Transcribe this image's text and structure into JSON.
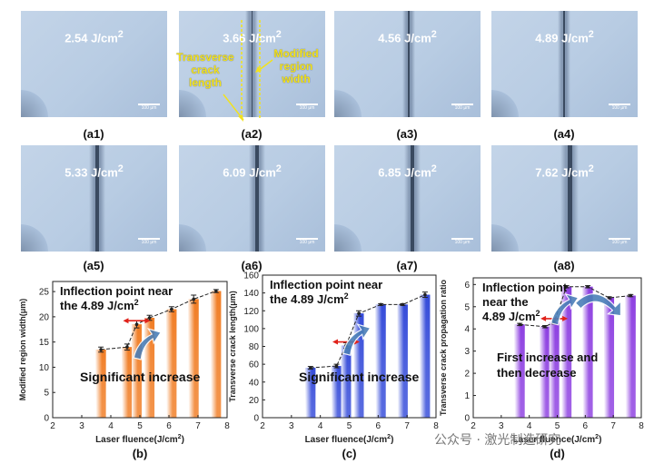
{
  "micrographs": [
    {
      "fluence": "2.54 J/cm",
      "exp": "2",
      "label": "(a1)",
      "scale": "100 μm"
    },
    {
      "fluence": "3.66 J/cm",
      "exp": "2",
      "label": "(a2)",
      "scale": "100 μm"
    },
    {
      "fluence": "4.56 J/cm",
      "exp": "2",
      "label": "(a3)",
      "scale": "100 μm"
    },
    {
      "fluence": "4.89 J/cm",
      "exp": "2",
      "label": "(a4)",
      "scale": "100 μm"
    },
    {
      "fluence": "5.33 J/cm",
      "exp": "2",
      "label": "(a5)",
      "scale": "100 μm"
    },
    {
      "fluence": "6.09 J/cm",
      "exp": "2",
      "label": "(a6)",
      "scale": "100 μm"
    },
    {
      "fluence": "6.85 J/cm",
      "exp": "2",
      "label": "(a7)",
      "scale": "100 μm"
    },
    {
      "fluence": "7.62 J/cm",
      "exp": "2",
      "label": "(a8)",
      "scale": "100 μm"
    }
  ],
  "annotations": {
    "transverse": [
      "Transverse",
      "crack",
      "length"
    ],
    "modified": [
      "Modified",
      "region",
      "width"
    ]
  },
  "watermark": "公众号 · 激光制造研究",
  "chart_data": [
    {
      "type": "bar",
      "panel": "(b)",
      "xlabel": "Laser fluence(J/cm",
      "ylabel": "Modified region width(μm)",
      "xlim": [
        2,
        8
      ],
      "ylim": [
        0,
        27
      ],
      "xticks": [
        2,
        3,
        4,
        5,
        6,
        7,
        8
      ],
      "yticks": [
        0,
        5,
        10,
        15,
        20,
        25
      ],
      "x": [
        3.66,
        4.56,
        4.89,
        5.33,
        6.09,
        6.85,
        7.62
      ],
      "values": [
        13.5,
        14.0,
        18.5,
        19.8,
        21.5,
        23.5,
        25.1
      ],
      "errors": [
        0.5,
        0.6,
        0.7,
        0.5,
        0.5,
        0.8,
        0.3
      ],
      "color": "#f0791e",
      "title_lines": [
        "Inflection point near",
        "the 4.89 J/cm"
      ],
      "trend": "Significant increase"
    },
    {
      "type": "bar",
      "panel": "(c)",
      "xlabel": "Laser fluence(J/cm",
      "ylabel": "Transverse crack length(μm)",
      "xlim": [
        2,
        8
      ],
      "ylim": [
        0,
        160
      ],
      "xticks": [
        2,
        3,
        4,
        5,
        6,
        7,
        8
      ],
      "yticks": [
        0,
        20,
        40,
        60,
        80,
        100,
        120,
        140,
        160
      ],
      "x": [
        3.66,
        4.56,
        4.89,
        5.33,
        6.09,
        6.85,
        7.62
      ],
      "values": [
        56,
        58,
        81,
        117,
        127,
        127,
        138
      ],
      "errors": [
        1.5,
        2,
        3,
        3,
        1,
        1,
        3
      ],
      "color": "#2f46d8",
      "title_lines": [
        "Inflection point near",
        "the 4.89 J/cm"
      ],
      "trend": "Significant increase"
    },
    {
      "type": "bar",
      "panel": "(d)",
      "xlabel": "Laser fluence(J/cm",
      "ylabel": "Transverse crack propagation ratio",
      "xlim": [
        2,
        8
      ],
      "ylim": [
        0,
        6.3
      ],
      "xticks": [
        2,
        3,
        4,
        5,
        6,
        7,
        8
      ],
      "yticks": [
        0,
        1,
        2,
        3,
        4,
        5,
        6
      ],
      "x": [
        3.66,
        4.56,
        4.89,
        5.33,
        6.09,
        6.85,
        7.62
      ],
      "values": [
        4.2,
        4.1,
        4.3,
        5.9,
        5.9,
        5.4,
        5.5
      ],
      "errors": [
        0.05,
        0.05,
        0.08,
        0.05,
        0.05,
        0.05,
        0.05
      ],
      "color": "#8a3ae0",
      "title_lines": [
        "Inflection point",
        "near the",
        "4.89 J/cm"
      ],
      "trend_lines": [
        "First increase and",
        "then decrease"
      ]
    }
  ],
  "exp2": "2",
  "xlabel_tail": ")"
}
